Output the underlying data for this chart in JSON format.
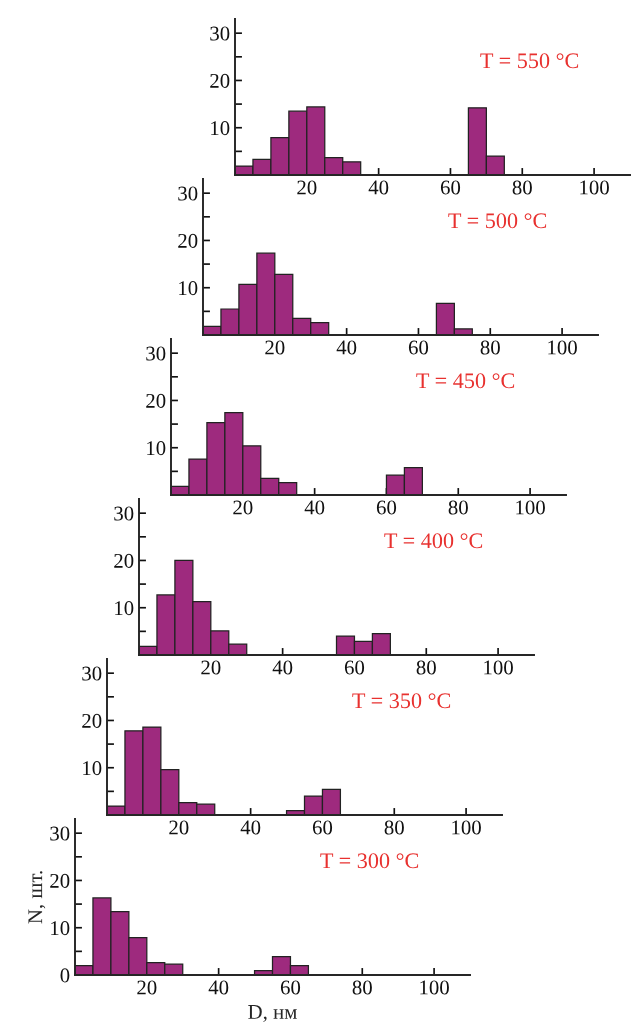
{
  "chart_data": [
    {
      "type": "histogram",
      "title": "T = 550 °C",
      "color": "#9e2a7e",
      "bins": [
        0,
        5,
        10,
        15,
        20,
        25,
        30,
        35,
        40,
        45,
        50,
        55,
        60,
        65,
        70,
        75
      ],
      "values": [
        1.9,
        3.3,
        7.9,
        13.5,
        14.4,
        3.7,
        2.8,
        0,
        0,
        0,
        0,
        0,
        0,
        14.2,
        4.0
      ],
      "xlim": [
        0,
        110
      ],
      "ylim": [
        0,
        33
      ],
      "xticks": [
        20,
        40,
        60,
        80,
        100
      ],
      "yticks": [
        {
          "value": 5,
          "label": null
        },
        10,
        {
          "value": 15,
          "label": null
        },
        20,
        {
          "value": 25,
          "label": null
        },
        30
      ]
    },
    {
      "type": "histogram",
      "title": "T = 500 °C",
      "color": "#9e2a7e",
      "bins": [
        0,
        5,
        10,
        15,
        20,
        25,
        30,
        35,
        40,
        45,
        50,
        55,
        60,
        65,
        70,
        75
      ],
      "values": [
        1.8,
        5.5,
        10.7,
        17.3,
        12.8,
        3.5,
        2.6,
        0,
        0,
        0,
        0,
        0,
        0,
        6.7,
        1.3
      ],
      "xlim": [
        0,
        110
      ],
      "ylim": [
        0,
        33
      ],
      "xticks": [
        20,
        40,
        60,
        80,
        100
      ],
      "yticks": [
        {
          "value": 5,
          "label": null
        },
        10,
        {
          "value": 15,
          "label": null
        },
        20,
        {
          "value": 25,
          "label": null
        },
        30
      ]
    },
    {
      "type": "histogram",
      "title": "T = 450 °C",
      "color": "#9e2a7e",
      "bins": [
        0,
        5,
        10,
        15,
        20,
        25,
        30,
        35,
        40,
        45,
        50,
        55,
        60,
        65,
        70
      ],
      "values": [
        1.8,
        7.6,
        15.3,
        17.4,
        10.4,
        3.5,
        2.6,
        0,
        0,
        0,
        0,
        0,
        4.2,
        5.8
      ],
      "xlim": [
        0,
        110
      ],
      "ylim": [
        0,
        33
      ],
      "xticks": [
        20,
        40,
        60,
        80,
        100
      ],
      "yticks": [
        {
          "value": 5,
          "label": null
        },
        10,
        {
          "value": 15,
          "label": null
        },
        20,
        {
          "value": 25,
          "label": null
        },
        30
      ]
    },
    {
      "type": "histogram",
      "title": "T = 400 °C",
      "color": "#9e2a7e",
      "bins": [
        0,
        5,
        10,
        15,
        20,
        25,
        30,
        35,
        40,
        45,
        50,
        55,
        60,
        65,
        70
      ],
      "values": [
        1.8,
        12.7,
        20,
        11.3,
        5.1,
        2.3,
        0,
        0,
        0,
        0,
        0,
        4.0,
        2.9,
        4.5
      ],
      "xlim": [
        0,
        110
      ],
      "ylim": [
        0,
        33
      ],
      "xticks": [
        20,
        40,
        60,
        80,
        100
      ],
      "yticks": [
        {
          "value": 5,
          "label": null
        },
        10,
        {
          "value": 15,
          "label": null
        },
        20,
        {
          "value": 25,
          "label": null
        },
        30
      ]
    },
    {
      "type": "histogram",
      "title": "T = 350 °C",
      "color": "#9e2a7e",
      "bins": [
        0,
        5,
        10,
        15,
        20,
        25,
        30,
        35,
        40,
        45,
        50,
        55,
        60,
        65
      ],
      "values": [
        1.9,
        17.8,
        18.6,
        9.6,
        2.6,
        2.3,
        0,
        0,
        0,
        0,
        0.9,
        4.0,
        5.4
      ],
      "xlim": [
        0,
        110
      ],
      "ylim": [
        0,
        33
      ],
      "xticks": [
        20,
        40,
        60,
        80,
        100
      ],
      "yticks": [
        {
          "value": 5,
          "label": null
        },
        10,
        {
          "value": 15,
          "label": null
        },
        20,
        {
          "value": 25,
          "label": null
        },
        30
      ]
    },
    {
      "type": "histogram",
      "title": "T = 300 °C",
      "color": "#9e2a7e",
      "bins": [
        0,
        5,
        10,
        15,
        20,
        25,
        30,
        35,
        40,
        45,
        50,
        55,
        60,
        65
      ],
      "values": [
        2.0,
        16.3,
        13.4,
        7.9,
        2.6,
        2.3,
        0,
        0,
        0,
        0,
        0.9,
        3.9,
        2.0
      ],
      "xlabel": "D, нм",
      "ylabel": "N, шт.",
      "xlim": [
        0,
        110
      ],
      "ylim": [
        0,
        33
      ],
      "xticks": [
        20,
        40,
        60,
        80,
        100
      ],
      "yticks": [
        0,
        {
          "value": 5,
          "label": null
        },
        10,
        {
          "value": 15,
          "label": null
        },
        20,
        {
          "value": 25,
          "label": null
        },
        30
      ]
    }
  ]
}
